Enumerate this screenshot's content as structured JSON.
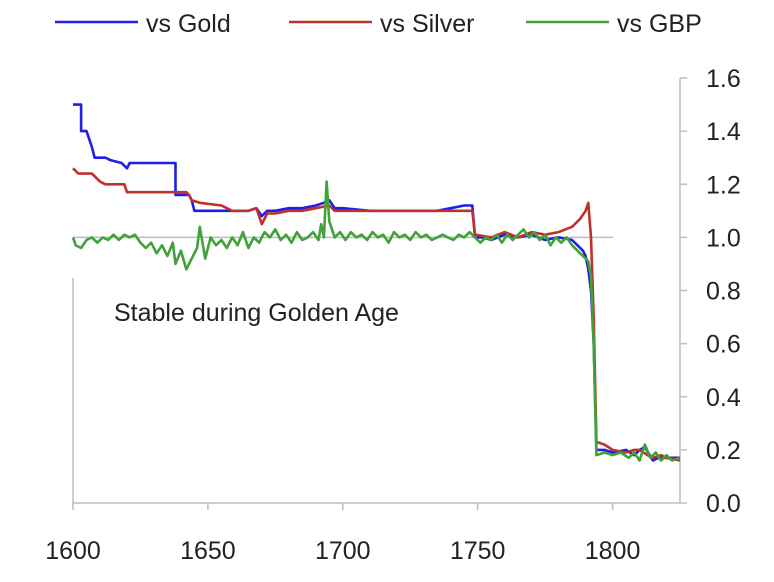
{
  "chart_data": {
    "type": "line",
    "title": "",
    "xlabel": "",
    "ylabel": "",
    "xlim": [
      1600,
      1825
    ],
    "ylim": [
      0,
      1.6
    ],
    "x_ticks": [
      "1600",
      "1650",
      "1700",
      "1750",
      "1800"
    ],
    "y_ticks": [
      "0.0",
      "0.2",
      "0.4",
      "0.6",
      "0.8",
      "1.0",
      "1.2",
      "1.4",
      "1.6"
    ],
    "y_axis_side": "right",
    "reference_line_y": 1.0,
    "legend_position": "top",
    "annotation": "Stable during Golden Age",
    "series": [
      {
        "name": "vs Gold",
        "color": "#1f1fe6",
        "points": [
          [
            1600,
            1.5
          ],
          [
            1603,
            1.5
          ],
          [
            1603,
            1.4
          ],
          [
            1605,
            1.4
          ],
          [
            1607,
            1.34
          ],
          [
            1608,
            1.3
          ],
          [
            1612,
            1.3
          ],
          [
            1614,
            1.29
          ],
          [
            1618,
            1.28
          ],
          [
            1620,
            1.26
          ],
          [
            1621,
            1.28
          ],
          [
            1624,
            1.28
          ],
          [
            1638,
            1.28
          ],
          [
            1638,
            1.16
          ],
          [
            1643,
            1.16
          ],
          [
            1644,
            1.14
          ],
          [
            1645,
            1.1
          ],
          [
            1652,
            1.1
          ],
          [
            1658,
            1.1
          ],
          [
            1660,
            1.1
          ],
          [
            1665,
            1.1
          ],
          [
            1668,
            1.11
          ],
          [
            1670,
            1.08
          ],
          [
            1672,
            1.1
          ],
          [
            1675,
            1.1
          ],
          [
            1680,
            1.11
          ],
          [
            1685,
            1.11
          ],
          [
            1690,
            1.12
          ],
          [
            1693,
            1.13
          ],
          [
            1695,
            1.14
          ],
          [
            1697,
            1.11
          ],
          [
            1700,
            1.11
          ],
          [
            1710,
            1.1
          ],
          [
            1720,
            1.1
          ],
          [
            1730,
            1.1
          ],
          [
            1735,
            1.1
          ],
          [
            1740,
            1.11
          ],
          [
            1745,
            1.12
          ],
          [
            1748,
            1.12
          ],
          [
            1749,
            1.0
          ],
          [
            1752,
            1.0
          ],
          [
            1755,
            0.99
          ],
          [
            1760,
            1.01
          ],
          [
            1765,
            1.0
          ],
          [
            1770,
            1.01
          ],
          [
            1775,
            0.99
          ],
          [
            1780,
            1.0
          ],
          [
            1785,
            0.99
          ],
          [
            1787,
            0.97
          ],
          [
            1789,
            0.95
          ],
          [
            1790,
            0.93
          ],
          [
            1791,
            0.88
          ],
          [
            1792,
            0.8
          ],
          [
            1793,
            0.6
          ],
          [
            1794,
            0.2
          ],
          [
            1797,
            0.2
          ],
          [
            1800,
            0.19
          ],
          [
            1805,
            0.2
          ],
          [
            1808,
            0.18
          ],
          [
            1810,
            0.2
          ],
          [
            1812,
            0.21
          ],
          [
            1815,
            0.16
          ],
          [
            1817,
            0.17
          ],
          [
            1820,
            0.17
          ],
          [
            1825,
            0.17
          ]
        ]
      },
      {
        "name": "vs Silver",
        "color": "#c0302c",
        "points": [
          [
            1600,
            1.26
          ],
          [
            1602,
            1.24
          ],
          [
            1607,
            1.24
          ],
          [
            1610,
            1.21
          ],
          [
            1612,
            1.2
          ],
          [
            1619,
            1.2
          ],
          [
            1620,
            1.17
          ],
          [
            1638,
            1.17
          ],
          [
            1642,
            1.17
          ],
          [
            1643,
            1.16
          ],
          [
            1644,
            1.14
          ],
          [
            1647,
            1.13
          ],
          [
            1655,
            1.12
          ],
          [
            1659,
            1.1
          ],
          [
            1665,
            1.1
          ],
          [
            1668,
            1.11
          ],
          [
            1670,
            1.05
          ],
          [
            1672,
            1.09
          ],
          [
            1675,
            1.09
          ],
          [
            1680,
            1.1
          ],
          [
            1685,
            1.1
          ],
          [
            1690,
            1.11
          ],
          [
            1695,
            1.12
          ],
          [
            1697,
            1.1
          ],
          [
            1700,
            1.1
          ],
          [
            1710,
            1.1
          ],
          [
            1720,
            1.1
          ],
          [
            1730,
            1.1
          ],
          [
            1740,
            1.1
          ],
          [
            1748,
            1.1
          ],
          [
            1749,
            1.01
          ],
          [
            1755,
            1.0
          ],
          [
            1760,
            1.02
          ],
          [
            1765,
            1.0
          ],
          [
            1770,
            1.02
          ],
          [
            1775,
            1.01
          ],
          [
            1780,
            1.02
          ],
          [
            1785,
            1.04
          ],
          [
            1788,
            1.07
          ],
          [
            1790,
            1.1
          ],
          [
            1791,
            1.13
          ],
          [
            1792,
            1.0
          ],
          [
            1793,
            0.7
          ],
          [
            1794,
            0.23
          ],
          [
            1797,
            0.22
          ],
          [
            1800,
            0.2
          ],
          [
            1805,
            0.19
          ],
          [
            1808,
            0.2
          ],
          [
            1810,
            0.2
          ],
          [
            1813,
            0.18
          ],
          [
            1815,
            0.17
          ],
          [
            1818,
            0.18
          ],
          [
            1820,
            0.17
          ],
          [
            1825,
            0.16
          ]
        ]
      },
      {
        "name": "vs GBP",
        "color": "#3fa33a",
        "points": [
          [
            1600,
            1.0
          ],
          [
            1601,
            0.97
          ],
          [
            1603,
            0.96
          ],
          [
            1605,
            0.99
          ],
          [
            1607,
            1.0
          ],
          [
            1609,
            0.98
          ],
          [
            1611,
            1.0
          ],
          [
            1613,
            0.99
          ],
          [
            1615,
            1.01
          ],
          [
            1617,
            0.99
          ],
          [
            1619,
            1.01
          ],
          [
            1621,
            1.0
          ],
          [
            1623,
            1.01
          ],
          [
            1625,
            0.98
          ],
          [
            1627,
            0.96
          ],
          [
            1629,
            0.98
          ],
          [
            1631,
            0.94
          ],
          [
            1633,
            0.97
          ],
          [
            1635,
            0.93
          ],
          [
            1637,
            0.98
          ],
          [
            1638,
            0.9
          ],
          [
            1640,
            0.95
          ],
          [
            1642,
            0.88
          ],
          [
            1644,
            0.92
          ],
          [
            1646,
            0.96
          ],
          [
            1647,
            1.04
          ],
          [
            1649,
            0.92
          ],
          [
            1651,
            1.0
          ],
          [
            1653,
            0.97
          ],
          [
            1655,
            0.99
          ],
          [
            1657,
            0.96
          ],
          [
            1659,
            1.0
          ],
          [
            1661,
            0.97
          ],
          [
            1663,
            1.02
          ],
          [
            1665,
            0.96
          ],
          [
            1667,
            1.0
          ],
          [
            1669,
            0.98
          ],
          [
            1671,
            1.02
          ],
          [
            1673,
            1.0
          ],
          [
            1675,
            1.03
          ],
          [
            1677,
            0.99
          ],
          [
            1679,
            1.01
          ],
          [
            1681,
            0.98
          ],
          [
            1683,
            1.02
          ],
          [
            1685,
            0.99
          ],
          [
            1687,
            1.0
          ],
          [
            1689,
            1.02
          ],
          [
            1691,
            0.99
          ],
          [
            1692,
            1.05
          ],
          [
            1693,
            1.0
          ],
          [
            1694,
            1.21
          ],
          [
            1695,
            1.06
          ],
          [
            1697,
            1.0
          ],
          [
            1699,
            1.02
          ],
          [
            1701,
            0.99
          ],
          [
            1703,
            1.02
          ],
          [
            1705,
            1.0
          ],
          [
            1707,
            1.01
          ],
          [
            1709,
            0.99
          ],
          [
            1711,
            1.02
          ],
          [
            1713,
            1.0
          ],
          [
            1715,
            1.01
          ],
          [
            1717,
            0.98
          ],
          [
            1719,
            1.02
          ],
          [
            1721,
            1.0
          ],
          [
            1723,
            1.01
          ],
          [
            1725,
            0.99
          ],
          [
            1727,
            1.02
          ],
          [
            1729,
            1.0
          ],
          [
            1731,
            1.01
          ],
          [
            1733,
            0.99
          ],
          [
            1735,
            1.0
          ],
          [
            1737,
            1.01
          ],
          [
            1739,
            1.0
          ],
          [
            1741,
            0.99
          ],
          [
            1743,
            1.01
          ],
          [
            1745,
            1.0
          ],
          [
            1747,
            1.02
          ],
          [
            1749,
            1.0
          ],
          [
            1751,
            0.98
          ],
          [
            1753,
            1.0
          ],
          [
            1755,
            0.99
          ],
          [
            1757,
            1.01
          ],
          [
            1759,
            0.98
          ],
          [
            1761,
            1.01
          ],
          [
            1763,
            0.99
          ],
          [
            1765,
            1.01
          ],
          [
            1767,
            1.03
          ],
          [
            1769,
            1.0
          ],
          [
            1771,
            1.02
          ],
          [
            1773,
            0.99
          ],
          [
            1775,
            1.01
          ],
          [
            1777,
            0.97
          ],
          [
            1779,
            1.0
          ],
          [
            1781,
            0.98
          ],
          [
            1783,
            1.0
          ],
          [
            1785,
            0.97
          ],
          [
            1787,
            0.95
          ],
          [
            1789,
            0.93
          ],
          [
            1791,
            0.91
          ],
          [
            1792,
            0.85
          ],
          [
            1793,
            0.6
          ],
          [
            1794,
            0.18
          ],
          [
            1797,
            0.19
          ],
          [
            1800,
            0.18
          ],
          [
            1803,
            0.19
          ],
          [
            1806,
            0.17
          ],
          [
            1808,
            0.19
          ],
          [
            1810,
            0.16
          ],
          [
            1812,
            0.22
          ],
          [
            1814,
            0.17
          ],
          [
            1816,
            0.19
          ],
          [
            1818,
            0.16
          ],
          [
            1820,
            0.18
          ],
          [
            1822,
            0.16
          ],
          [
            1825,
            0.17
          ]
        ]
      }
    ]
  }
}
